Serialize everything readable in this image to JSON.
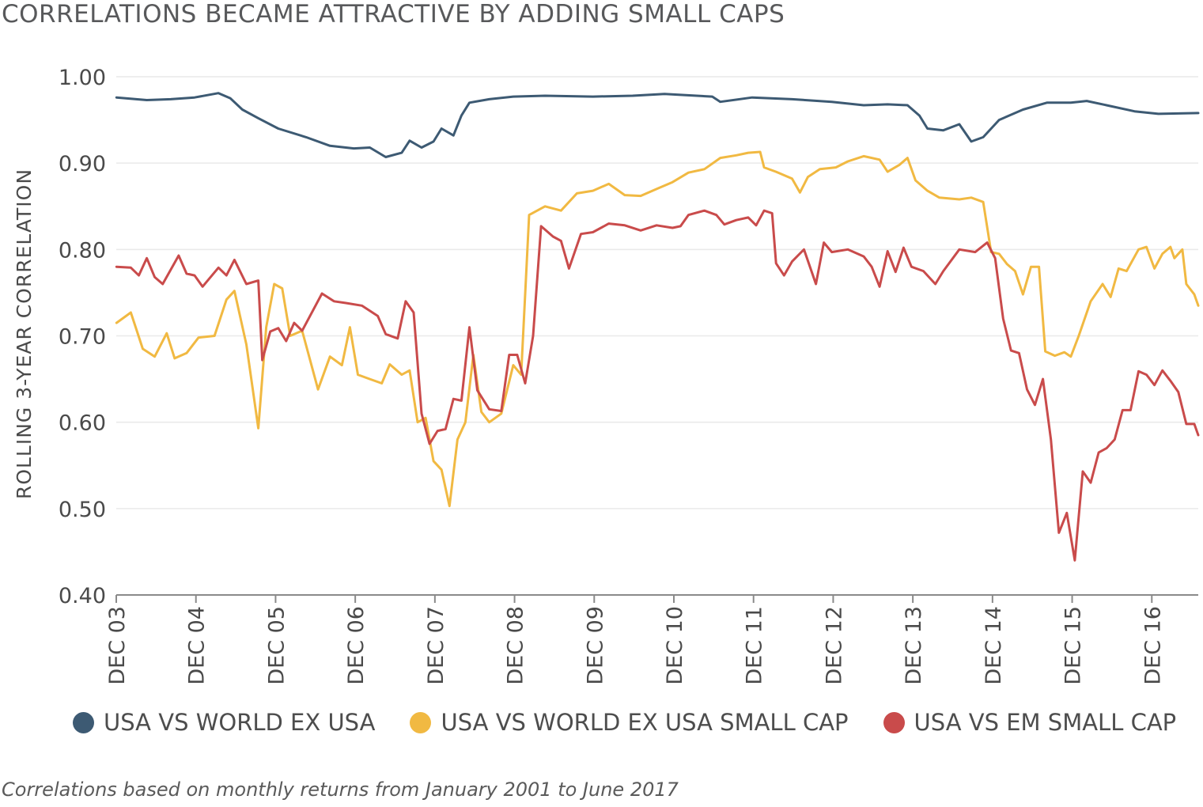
{
  "title": "CORRELATIONS BECAME ATTRACTIVE BY ADDING SMALL CAPS",
  "footnote": "Correlations based on monthly returns from January 2001 to June 2017",
  "chart_data": {
    "type": "line",
    "ylabel": "ROLLING 3-YEAR CORRELATION",
    "ylim": [
      0.4,
      1.0
    ],
    "yticks": [
      "0.40",
      "0.50",
      "0.60",
      "0.70",
      "0.80",
      "0.90",
      "1.00"
    ],
    "xticks": [
      "DEC 03",
      "DEC 04",
      "DEC 05",
      "DEC 06",
      "DEC 07",
      "DEC 08",
      "DEC 09",
      "DEC 10",
      "DEC 11",
      "DEC 12",
      "DEC 13",
      "DEC 14",
      "DEC 15",
      "DEC 16"
    ],
    "x_range_years": [
      2003.917,
      2017.5
    ],
    "grid": true,
    "legend_position": "bottom",
    "series": [
      {
        "name": "USA VS WORLD EX USA",
        "color": "#3d5a73",
        "points": [
          [
            2003.92,
            0.976
          ],
          [
            2004.3,
            0.973
          ],
          [
            2004.6,
            0.974
          ],
          [
            2004.9,
            0.976
          ],
          [
            2005.2,
            0.981
          ],
          [
            2005.35,
            0.975
          ],
          [
            2005.5,
            0.962
          ],
          [
            2005.7,
            0.952
          ],
          [
            2005.95,
            0.94
          ],
          [
            2006.3,
            0.93
          ],
          [
            2006.6,
            0.92
          ],
          [
            2006.9,
            0.917
          ],
          [
            2007.1,
            0.918
          ],
          [
            2007.3,
            0.907
          ],
          [
            2007.5,
            0.912
          ],
          [
            2007.6,
            0.926
          ],
          [
            2007.75,
            0.918
          ],
          [
            2007.9,
            0.925
          ],
          [
            2008.0,
            0.94
          ],
          [
            2008.15,
            0.932
          ],
          [
            2008.25,
            0.955
          ],
          [
            2008.35,
            0.97
          ],
          [
            2008.6,
            0.974
          ],
          [
            2008.9,
            0.977
          ],
          [
            2009.3,
            0.978
          ],
          [
            2009.9,
            0.977
          ],
          [
            2010.4,
            0.978
          ],
          [
            2010.8,
            0.98
          ],
          [
            2011.0,
            0.979
          ],
          [
            2011.4,
            0.977
          ],
          [
            2011.5,
            0.971
          ],
          [
            2011.9,
            0.976
          ],
          [
            2012.4,
            0.974
          ],
          [
            2012.9,
            0.971
          ],
          [
            2013.3,
            0.967
          ],
          [
            2013.6,
            0.968
          ],
          [
            2013.85,
            0.967
          ],
          [
            2014.0,
            0.955
          ],
          [
            2014.1,
            0.94
          ],
          [
            2014.3,
            0.938
          ],
          [
            2014.5,
            0.945
          ],
          [
            2014.65,
            0.925
          ],
          [
            2014.8,
            0.93
          ],
          [
            2015.0,
            0.95
          ],
          [
            2015.3,
            0.962
          ],
          [
            2015.6,
            0.97
          ],
          [
            2015.9,
            0.97
          ],
          [
            2016.1,
            0.972
          ],
          [
            2016.4,
            0.966
          ],
          [
            2016.7,
            0.96
          ],
          [
            2017.0,
            0.957
          ],
          [
            2017.5,
            0.958
          ]
        ]
      },
      {
        "name": "USA VS WORLD EX USA SMALL CAP",
        "color": "#f1b942",
        "points": [
          [
            2003.92,
            0.715
          ],
          [
            2004.1,
            0.727
          ],
          [
            2004.25,
            0.685
          ],
          [
            2004.4,
            0.676
          ],
          [
            2004.55,
            0.703
          ],
          [
            2004.65,
            0.674
          ],
          [
            2004.8,
            0.68
          ],
          [
            2004.95,
            0.698
          ],
          [
            2005.15,
            0.7
          ],
          [
            2005.3,
            0.742
          ],
          [
            2005.4,
            0.752
          ],
          [
            2005.55,
            0.69
          ],
          [
            2005.7,
            0.593
          ],
          [
            2005.8,
            0.71
          ],
          [
            2005.9,
            0.76
          ],
          [
            2006.0,
            0.755
          ],
          [
            2006.1,
            0.7
          ],
          [
            2006.25,
            0.706
          ],
          [
            2006.45,
            0.638
          ],
          [
            2006.6,
            0.676
          ],
          [
            2006.75,
            0.666
          ],
          [
            2006.85,
            0.71
          ],
          [
            2006.95,
            0.655
          ],
          [
            2007.1,
            0.65
          ],
          [
            2007.25,
            0.645
          ],
          [
            2007.35,
            0.667
          ],
          [
            2007.5,
            0.655
          ],
          [
            2007.6,
            0.66
          ],
          [
            2007.7,
            0.6
          ],
          [
            2007.8,
            0.605
          ],
          [
            2007.9,
            0.555
          ],
          [
            2008.0,
            0.545
          ],
          [
            2008.1,
            0.503
          ],
          [
            2008.2,
            0.58
          ],
          [
            2008.3,
            0.6
          ],
          [
            2008.4,
            0.678
          ],
          [
            2008.5,
            0.612
          ],
          [
            2008.6,
            0.6
          ],
          [
            2008.75,
            0.61
          ],
          [
            2008.9,
            0.666
          ],
          [
            2009.0,
            0.655
          ],
          [
            2009.1,
            0.84
          ],
          [
            2009.3,
            0.85
          ],
          [
            2009.5,
            0.845
          ],
          [
            2009.7,
            0.865
          ],
          [
            2009.9,
            0.868
          ],
          [
            2010.1,
            0.876
          ],
          [
            2010.3,
            0.863
          ],
          [
            2010.5,
            0.862
          ],
          [
            2010.7,
            0.87
          ],
          [
            2010.9,
            0.878
          ],
          [
            2011.1,
            0.889
          ],
          [
            2011.3,
            0.893
          ],
          [
            2011.5,
            0.906
          ],
          [
            2011.7,
            0.909
          ],
          [
            2011.85,
            0.912
          ],
          [
            2012.0,
            0.913
          ],
          [
            2012.05,
            0.895
          ],
          [
            2012.2,
            0.89
          ],
          [
            2012.4,
            0.882
          ],
          [
            2012.5,
            0.866
          ],
          [
            2012.6,
            0.884
          ],
          [
            2012.75,
            0.893
          ],
          [
            2012.95,
            0.895
          ],
          [
            2013.1,
            0.902
          ],
          [
            2013.3,
            0.908
          ],
          [
            2013.5,
            0.904
          ],
          [
            2013.6,
            0.89
          ],
          [
            2013.75,
            0.898
          ],
          [
            2013.85,
            0.906
          ],
          [
            2013.95,
            0.88
          ],
          [
            2014.1,
            0.868
          ],
          [
            2014.25,
            0.86
          ],
          [
            2014.5,
            0.858
          ],
          [
            2014.65,
            0.86
          ],
          [
            2014.8,
            0.855
          ],
          [
            2014.9,
            0.797
          ],
          [
            2015.0,
            0.795
          ],
          [
            2015.1,
            0.783
          ],
          [
            2015.2,
            0.775
          ],
          [
            2015.3,
            0.748
          ],
          [
            2015.4,
            0.78
          ],
          [
            2015.5,
            0.78
          ],
          [
            2015.58,
            0.682
          ],
          [
            2015.7,
            0.677
          ],
          [
            2015.82,
            0.681
          ],
          [
            2015.9,
            0.676
          ],
          [
            2016.0,
            0.7
          ],
          [
            2016.15,
            0.74
          ],
          [
            2016.3,
            0.76
          ],
          [
            2016.4,
            0.745
          ],
          [
            2016.5,
            0.778
          ],
          [
            2016.6,
            0.775
          ],
          [
            2016.75,
            0.8
          ],
          [
            2016.85,
            0.803
          ],
          [
            2016.95,
            0.778
          ],
          [
            2017.05,
            0.795
          ],
          [
            2017.15,
            0.803
          ],
          [
            2017.2,
            0.79
          ],
          [
            2017.3,
            0.8
          ],
          [
            2017.35,
            0.76
          ],
          [
            2017.45,
            0.748
          ],
          [
            2017.5,
            0.735
          ]
        ]
      },
      {
        "name": "USA VS EM SMALL CAP",
        "color": "#c94b4b",
        "points": [
          [
            2003.92,
            0.78
          ],
          [
            2004.1,
            0.779
          ],
          [
            2004.2,
            0.77
          ],
          [
            2004.3,
            0.79
          ],
          [
            2004.4,
            0.768
          ],
          [
            2004.5,
            0.76
          ],
          [
            2004.7,
            0.793
          ],
          [
            2004.8,
            0.772
          ],
          [
            2004.9,
            0.77
          ],
          [
            2005.0,
            0.757
          ],
          [
            2005.2,
            0.779
          ],
          [
            2005.3,
            0.77
          ],
          [
            2005.4,
            0.788
          ],
          [
            2005.55,
            0.76
          ],
          [
            2005.7,
            0.764
          ],
          [
            2005.75,
            0.672
          ],
          [
            2005.85,
            0.705
          ],
          [
            2005.95,
            0.709
          ],
          [
            2006.05,
            0.694
          ],
          [
            2006.15,
            0.715
          ],
          [
            2006.25,
            0.706
          ],
          [
            2006.5,
            0.749
          ],
          [
            2006.65,
            0.74
          ],
          [
            2006.8,
            0.738
          ],
          [
            2007.0,
            0.735
          ],
          [
            2007.2,
            0.723
          ],
          [
            2007.3,
            0.702
          ],
          [
            2007.45,
            0.697
          ],
          [
            2007.55,
            0.74
          ],
          [
            2007.65,
            0.727
          ],
          [
            2007.75,
            0.61
          ],
          [
            2007.85,
            0.575
          ],
          [
            2007.95,
            0.59
          ],
          [
            2008.05,
            0.592
          ],
          [
            2008.15,
            0.627
          ],
          [
            2008.25,
            0.625
          ],
          [
            2008.35,
            0.71
          ],
          [
            2008.45,
            0.637
          ],
          [
            2008.6,
            0.615
          ],
          [
            2008.75,
            0.613
          ],
          [
            2008.85,
            0.678
          ],
          [
            2008.95,
            0.678
          ],
          [
            2009.05,
            0.645
          ],
          [
            2009.15,
            0.7
          ],
          [
            2009.25,
            0.827
          ],
          [
            2009.4,
            0.815
          ],
          [
            2009.5,
            0.81
          ],
          [
            2009.6,
            0.778
          ],
          [
            2009.75,
            0.818
          ],
          [
            2009.9,
            0.82
          ],
          [
            2010.1,
            0.83
          ],
          [
            2010.3,
            0.828
          ],
          [
            2010.5,
            0.822
          ],
          [
            2010.7,
            0.828
          ],
          [
            2010.9,
            0.825
          ],
          [
            2011.0,
            0.827
          ],
          [
            2011.1,
            0.84
          ],
          [
            2011.3,
            0.845
          ],
          [
            2011.45,
            0.84
          ],
          [
            2011.55,
            0.829
          ],
          [
            2011.7,
            0.834
          ],
          [
            2011.85,
            0.837
          ],
          [
            2011.95,
            0.828
          ],
          [
            2012.05,
            0.845
          ],
          [
            2012.15,
            0.842
          ],
          [
            2012.2,
            0.784
          ],
          [
            2012.3,
            0.77
          ],
          [
            2012.4,
            0.786
          ],
          [
            2012.55,
            0.8
          ],
          [
            2012.7,
            0.76
          ],
          [
            2012.8,
            0.808
          ],
          [
            2012.9,
            0.797
          ],
          [
            2013.1,
            0.8
          ],
          [
            2013.3,
            0.792
          ],
          [
            2013.4,
            0.78
          ],
          [
            2013.5,
            0.757
          ],
          [
            2013.6,
            0.798
          ],
          [
            2013.7,
            0.774
          ],
          [
            2013.8,
            0.802
          ],
          [
            2013.9,
            0.78
          ],
          [
            2014.05,
            0.775
          ],
          [
            2014.2,
            0.76
          ],
          [
            2014.3,
            0.775
          ],
          [
            2014.5,
            0.8
          ],
          [
            2014.7,
            0.797
          ],
          [
            2014.85,
            0.808
          ],
          [
            2014.95,
            0.79
          ],
          [
            2015.05,
            0.72
          ],
          [
            2015.15,
            0.683
          ],
          [
            2015.25,
            0.68
          ],
          [
            2015.35,
            0.638
          ],
          [
            2015.45,
            0.62
          ],
          [
            2015.55,
            0.65
          ],
          [
            2015.65,
            0.58
          ],
          [
            2015.75,
            0.472
          ],
          [
            2015.85,
            0.495
          ],
          [
            2015.95,
            0.44
          ],
          [
            2016.05,
            0.543
          ],
          [
            2016.15,
            0.53
          ],
          [
            2016.25,
            0.565
          ],
          [
            2016.35,
            0.57
          ],
          [
            2016.45,
            0.58
          ],
          [
            2016.55,
            0.614
          ],
          [
            2016.65,
            0.614
          ],
          [
            2016.75,
            0.659
          ],
          [
            2016.85,
            0.655
          ],
          [
            2016.95,
            0.643
          ],
          [
            2017.05,
            0.66
          ],
          [
            2017.15,
            0.648
          ],
          [
            2017.25,
            0.635
          ],
          [
            2017.35,
            0.598
          ],
          [
            2017.45,
            0.598
          ],
          [
            2017.5,
            0.585
          ]
        ]
      }
    ]
  }
}
